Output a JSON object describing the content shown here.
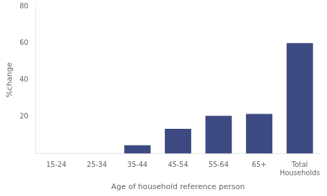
{
  "chart_data": {
    "type": "bar",
    "categories": [
      "15-24",
      "25-34",
      "35-44",
      "45-54",
      "55-64",
      "65+",
      "Total\nHouseholds"
    ],
    "values": [
      0,
      0,
      4.5,
      13.5,
      20.5,
      21.5,
      60
    ],
    "color": "#3d4a82",
    "ylabel": "%change",
    "xlabel": "Age of household reference person",
    "ylim": [
      0,
      80
    ],
    "yticks": [
      20,
      40,
      60,
      80
    ],
    "grid": false
  }
}
